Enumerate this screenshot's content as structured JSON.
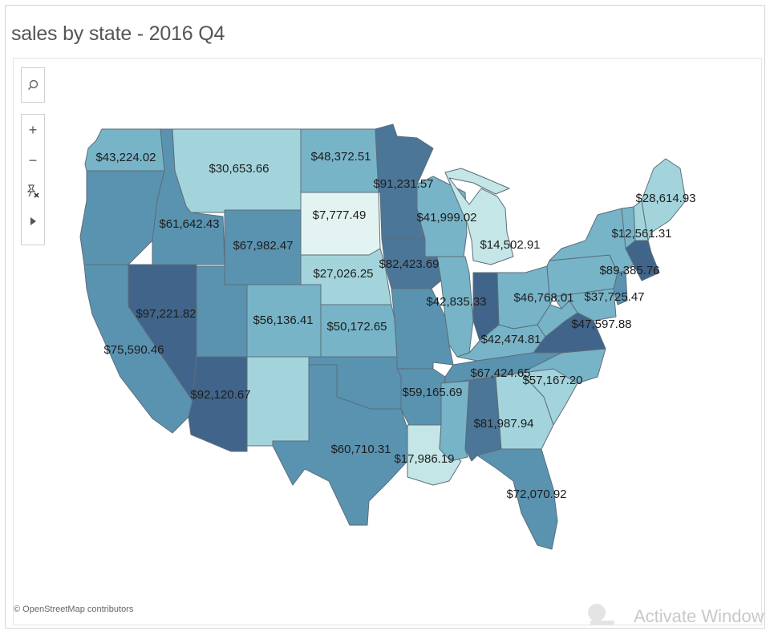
{
  "title": "sales by state - 2016 Q4",
  "controls": {
    "search_icon": "search-icon",
    "zoom_in_label": "+",
    "zoom_out_label": "−",
    "reset_icon": "pin-clear-icon",
    "expand_icon": "play-icon"
  },
  "credit": "© OpenStreetMap contributors",
  "watermark": "Activate Window",
  "colors": {
    "very_light": "#c5e6e6",
    "light": "#a3d4dc",
    "medium": "#78b4c8",
    "medium_dark": "#5a93b0",
    "dark": "#4c7698",
    "darkest": "#41658a",
    "lightest": "#e3f3f1"
  },
  "states": [
    {
      "id": "WA",
      "fill": "#78b4c8",
      "value_label": "$43,224.02"
    },
    {
      "id": "OR",
      "fill": "#5a93b0",
      "value_label": ""
    },
    {
      "id": "CA",
      "fill": "#5a93b0",
      "value_label": "$75,590.46"
    },
    {
      "id": "NV",
      "fill": "#41658a",
      "value_label": "$97,221.82"
    },
    {
      "id": "ID",
      "fill": "#5a93b0",
      "value_label": "$61,642.43"
    },
    {
      "id": "MT",
      "fill": "#a3d4dc",
      "value_label": "$30,653.66"
    },
    {
      "id": "WY",
      "fill": "#5a93b0",
      "value_label": "$67,982.47"
    },
    {
      "id": "UT",
      "fill": "#5a93b0",
      "value_label": ""
    },
    {
      "id": "AZ",
      "fill": "#41658a",
      "value_label": "$92,120.67"
    },
    {
      "id": "CO",
      "fill": "#78b4c8",
      "value_label": "$56,136.41"
    },
    {
      "id": "NM",
      "fill": "#a3d4dc",
      "value_label": ""
    },
    {
      "id": "ND",
      "fill": "#78b4c8",
      "value_label": "$48,372.51"
    },
    {
      "id": "SD",
      "fill": "#e3f3f1",
      "value_label": "$7,777.49"
    },
    {
      "id": "NE",
      "fill": "#a3d4dc",
      "value_label": "$27,026.25"
    },
    {
      "id": "KS",
      "fill": "#78b4c8",
      "value_label": "$50,172.65"
    },
    {
      "id": "OK",
      "fill": "#5a93b0",
      "value_label": ""
    },
    {
      "id": "TX",
      "fill": "#5a93b0",
      "value_label": "$60,710.31"
    },
    {
      "id": "MN",
      "fill": "#4c7698",
      "value_label": "$91,231.57"
    },
    {
      "id": "IA",
      "fill": "#4c7698",
      "value_label": "$82,423.69"
    },
    {
      "id": "MO",
      "fill": "#5a93b0",
      "value_label": ""
    },
    {
      "id": "AR",
      "fill": "#5a93b0",
      "value_label": "$59,165.69"
    },
    {
      "id": "LA",
      "fill": "#c5e6e6",
      "value_label": "$17,986.19"
    },
    {
      "id": "WI",
      "fill": "#78b4c8",
      "value_label": "$41,999.02"
    },
    {
      "id": "IL",
      "fill": "#78b4c8",
      "value_label": "$42,835.33"
    },
    {
      "id": "MI",
      "fill": "#c5e6e6",
      "value_label": "$14,502.91"
    },
    {
      "id": "IN",
      "fill": "#41658a",
      "value_label": ""
    },
    {
      "id": "OH",
      "fill": "#78b4c8",
      "value_label": "$46,768.01"
    },
    {
      "id": "KY",
      "fill": "#78b4c8",
      "value_label": "$42,474.81"
    },
    {
      "id": "TN",
      "fill": "#5a93b0",
      "value_label": "$67,424.65"
    },
    {
      "id": "MS",
      "fill": "#78b4c8",
      "value_label": ""
    },
    {
      "id": "AL",
      "fill": "#4c7698",
      "value_label": "$81,987.94"
    },
    {
      "id": "GA",
      "fill": "#a3d4dc",
      "value_label": ""
    },
    {
      "id": "FL",
      "fill": "#5a93b0",
      "value_label": "$72,070.92"
    },
    {
      "id": "SC",
      "fill": "#a3d4dc",
      "value_label": ""
    },
    {
      "id": "NC",
      "fill": "#78b4c8",
      "value_label": "$57,167.20"
    },
    {
      "id": "VA",
      "fill": "#41658a",
      "value_label": ""
    },
    {
      "id": "WV",
      "fill": "#78b4c8",
      "value_label": ""
    },
    {
      "id": "PA",
      "fill": "#78b4c8",
      "value_label": "$37,725.47"
    },
    {
      "id": "MD",
      "fill": "#78b4c8",
      "value_label": "$47,597.88"
    },
    {
      "id": "NY",
      "fill": "#78b4c8",
      "value_label": "$12,561.31"
    },
    {
      "id": "NJ",
      "fill": "#5a93b0",
      "value_label": ""
    },
    {
      "id": "VT",
      "fill": "#78b4c8",
      "value_label": ""
    },
    {
      "id": "NH",
      "fill": "#a3d4dc",
      "value_label": ""
    },
    {
      "id": "ME",
      "fill": "#a3d4dc",
      "value_label": "$28,614.93"
    },
    {
      "id": "MA",
      "fill": "#41658a",
      "value_label": "$89,385.76"
    }
  ]
}
